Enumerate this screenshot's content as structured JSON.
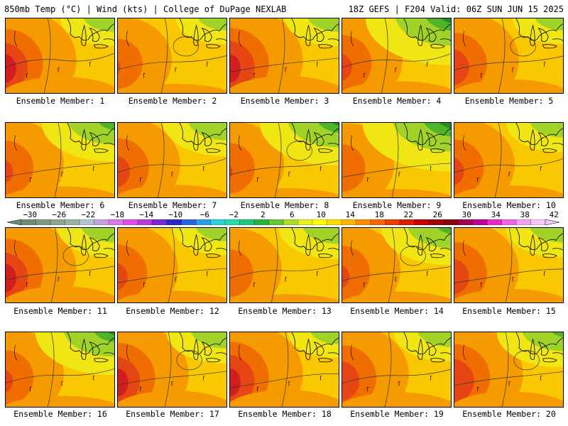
{
  "header": {
    "left": "850mb Temp (°C) | Wind (kts) | College of DuPage NEXLAB",
    "right": "18Z GEFS | F204 Valid: 06Z SUN JUN 15 2025"
  },
  "panel_label_prefix": "Ensemble Member: ",
  "members": [
    {
      "id": "1",
      "label": "Ensemble Member: 1",
      "hot": 0.85,
      "cool": 0.35
    },
    {
      "id": "2",
      "label": "Ensemble Member: 2",
      "hot": 0.45,
      "cool": 0.3
    },
    {
      "id": "3",
      "label": "Ensemble Member: 3",
      "hot": 0.9,
      "cool": 0.35
    },
    {
      "id": "4",
      "label": "Ensemble Member: 4",
      "hot": 0.6,
      "cool": 0.85
    },
    {
      "id": "5",
      "label": "Ensemble Member: 5",
      "hot": 0.7,
      "cool": 0.3
    },
    {
      "id": "6",
      "label": "Ensemble Member: 6",
      "hot": 0.55,
      "cool": 0.65
    },
    {
      "id": "7",
      "label": "Ensemble Member: 7",
      "hot": 0.65,
      "cool": 0.5
    },
    {
      "id": "8",
      "label": "Ensemble Member: 8",
      "hot": 0.45,
      "cool": 0.75
    },
    {
      "id": "9",
      "label": "Ensemble Member: 9",
      "hot": 0.4,
      "cool": 0.9
    },
    {
      "id": "10",
      "label": "Ensemble Member: 10",
      "hot": 0.6,
      "cool": 0.4
    },
    {
      "id": "11",
      "label": "Ensemble Member: 11",
      "hot": 0.85,
      "cool": 0.4
    },
    {
      "id": "12",
      "label": "Ensemble Member: 12",
      "hot": 0.6,
      "cool": 0.35
    },
    {
      "id": "13",
      "label": "Ensemble Member: 13",
      "hot": 0.4,
      "cool": 0.45
    },
    {
      "id": "14",
      "label": "Ensemble Member: 14",
      "hot": 0.55,
      "cool": 0.6
    },
    {
      "id": "15",
      "label": "Ensemble Member: 15",
      "hot": 0.7,
      "cool": 0.4
    },
    {
      "id": "16",
      "label": "Ensemble Member: 16",
      "hot": 0.55,
      "cool": 0.75
    },
    {
      "id": "17",
      "label": "Ensemble Member: 17",
      "hot": 0.85,
      "cool": 0.45
    },
    {
      "id": "18",
      "label": "Ensemble Member: 18",
      "hot": 0.9,
      "cool": 0.3
    },
    {
      "id": "19",
      "label": "Ensemble Member: 19",
      "hot": 0.75,
      "cool": 0.4
    },
    {
      "id": "20",
      "label": "Ensemble Member: 20",
      "hot": 0.8,
      "cool": 0.55
    }
  ],
  "colorbar": {
    "tick_labels": [
      "-30",
      "-26",
      "-22",
      "-18",
      "-14",
      "-10",
      "-6",
      "-2",
      "2",
      "6",
      "10",
      "14",
      "18",
      "22",
      "26",
      "30",
      "34",
      "38",
      "42"
    ],
    "colors": [
      "#6e8c78",
      "#7d9986",
      "#8ca694",
      "#9ab3a2",
      "#b4c2d4",
      "#c7a0e0",
      "#d67ae6",
      "#e050e6",
      "#b43cdc",
      "#7828d2",
      "#2828c8",
      "#2864dc",
      "#28a0e6",
      "#28d2dc",
      "#28dcaa",
      "#1ec878",
      "#28b43c",
      "#64c832",
      "#aadc28",
      "#e6f01e",
      "#ffff00",
      "#ffdc00",
      "#ffb400",
      "#ff8c00",
      "#ff6400",
      "#f03c00",
      "#dc1e00",
      "#c80000",
      "#a00000",
      "#8c0014",
      "#a00050",
      "#be0096",
      "#e628c8",
      "#f064e6",
      "#f0a0f0",
      "#f5c8f5"
    ]
  },
  "map_palette": {
    "green_dark": "#1e8c28",
    "green": "#50b428",
    "lime": "#a0d228",
    "yellow": "#f0e614",
    "gold": "#fac800",
    "orange": "#f59b00",
    "dark_orange": "#f06e00",
    "red_orange": "#e64614",
    "red": "#d21e1e",
    "dark_red": "#b40a0a"
  }
}
